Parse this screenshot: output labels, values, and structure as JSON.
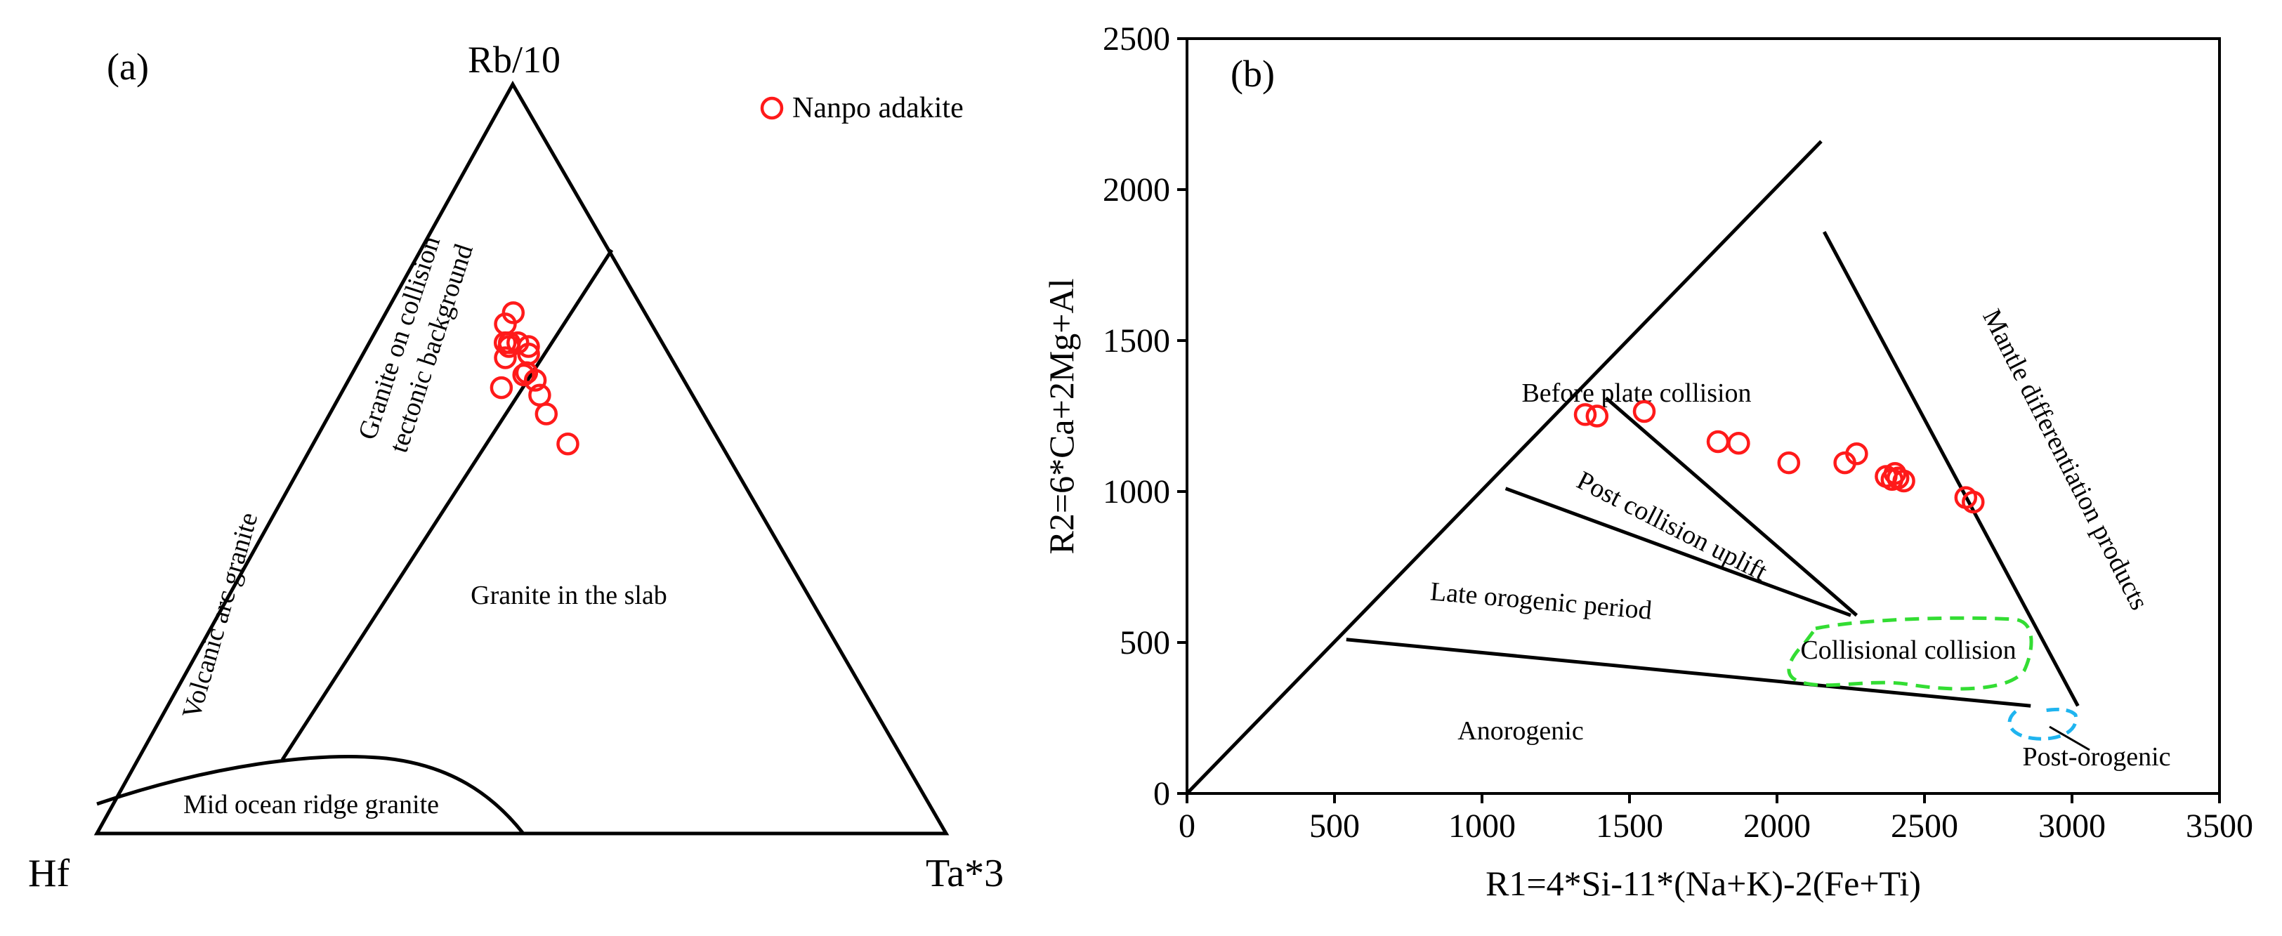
{
  "panel_a": {
    "label": "(a)",
    "vertices": {
      "top": "Rb/10",
      "left": "Hf",
      "right": "Ta*3"
    },
    "legend": {
      "marker": "circle-open",
      "color": "#ff1a1a",
      "label": "Nanpo adakite",
      "placement": "top-right"
    },
    "fields": {
      "collision": [
        "Granite on collision",
        "tectonic background"
      ],
      "volcanic_arc": "Volcanic arc granite",
      "slab": "Granite in the slab",
      "mid_ocean": "Mid ocean ridge granite"
    }
  },
  "panel_b": {
    "label": "(b)",
    "fields": {
      "before_collision": "Before plate collision",
      "post_uplift": "Post collision uplift",
      "late_orogenic": "Late orogenic period",
      "collisional": "Collisional collision",
      "anorogenic": "Anorogenic",
      "post_orogenic": "Post-orogenic",
      "mantle": "Mantle differentiation products"
    }
  },
  "chart_data": [
    {
      "type": "scatter",
      "subtype": "ternary",
      "components": [
        "Rb/10",
        "Hf",
        "Ta*3"
      ],
      "series": [
        {
          "name": "Nanpo adakite",
          "color": "#ff1a1a",
          "points": [
            {
              "rb": 0.695,
              "hf": 0.155,
              "ta": 0.15
            },
            {
              "rb": 0.68,
              "hf": 0.172,
              "ta": 0.148
            },
            {
              "rb": 0.655,
              "hf": 0.17,
              "ta": 0.175
            },
            {
              "rb": 0.65,
              "hf": 0.16,
              "ta": 0.19
            },
            {
              "rb": 0.655,
              "hf": 0.185,
              "ta": 0.16
            },
            {
              "rb": 0.655,
              "hf": 0.18,
              "ta": 0.165
            },
            {
              "rb": 0.65,
              "hf": 0.183,
              "ta": 0.167
            },
            {
              "rb": 0.64,
              "hf": 0.165,
              "ta": 0.195
            },
            {
              "rb": 0.635,
              "hf": 0.195,
              "ta": 0.17
            },
            {
              "rb": 0.615,
              "hf": 0.18,
              "ta": 0.205
            },
            {
              "rb": 0.605,
              "hf": 0.175,
              "ta": 0.22
            },
            {
              "rb": 0.612,
              "hf": 0.185,
              "ta": 0.203
            },
            {
              "rb": 0.595,
              "hf": 0.22,
              "ta": 0.185
            },
            {
              "rb": 0.585,
              "hf": 0.18,
              "ta": 0.235
            },
            {
              "rb": 0.56,
              "hf": 0.185,
              "ta": 0.255
            },
            {
              "rb": 0.52,
              "hf": 0.18,
              "ta": 0.3
            }
          ]
        }
      ]
    },
    {
      "type": "scatter",
      "x": {
        "label": "R1=4*Si-11*(Na+K)-2(Fe+Ti)",
        "range": [
          0,
          3500
        ],
        "ticks": [
          0,
          500,
          1000,
          1500,
          2000,
          2500,
          3000,
          3500
        ]
      },
      "y": {
        "label": "R2=6*Ca+2Mg+Al",
        "range": [
          0,
          2500
        ],
        "ticks": [
          0,
          500,
          1000,
          1500,
          2000,
          2500
        ]
      },
      "grid": false,
      "series": [
        {
          "name": "Nanpo adakite",
          "color": "#ff1a1a",
          "points": [
            [
              1350,
              1255
            ],
            [
              1390,
              1250
            ],
            [
              1550,
              1265
            ],
            [
              1800,
              1165
            ],
            [
              1870,
              1160
            ],
            [
              2040,
              1095
            ],
            [
              2230,
              1095
            ],
            [
              2270,
              1125
            ],
            [
              2370,
              1050
            ],
            [
              2390,
              1040
            ],
            [
              2400,
              1060
            ],
            [
              2410,
              1045
            ],
            [
              2430,
              1035
            ],
            [
              2640,
              980
            ],
            [
              2665,
              965
            ]
          ]
        }
      ],
      "boundaries": [
        {
          "name": "outer-left",
          "points": [
            [
              0,
              0
            ],
            [
              2150,
              2160
            ]
          ]
        },
        {
          "name": "mantle-boundary",
          "points": [
            [
              2160,
              1860
            ],
            [
              3020,
              290
            ]
          ]
        },
        {
          "name": "base",
          "points": [
            [
              540,
              510
            ],
            [
              2860,
              290
            ]
          ]
        },
        {
          "name": "pre-collision-lower",
          "points": [
            [
              1420,
              1310
            ],
            [
              2270,
              590
            ]
          ]
        },
        {
          "name": "post-uplift-lower",
          "points": [
            [
              1080,
              1010
            ],
            [
              2250,
              590
            ]
          ]
        }
      ]
    }
  ]
}
